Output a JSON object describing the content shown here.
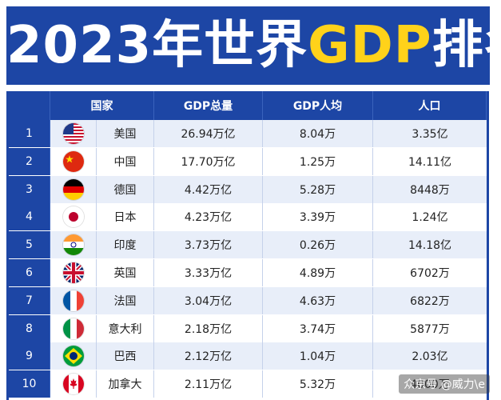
{
  "banner": {
    "title_prefix": "2023年世界",
    "title_highlight": "GDP",
    "title_suffix": "排名"
  },
  "colors": {
    "header_blue": "#1d46a5",
    "highlight_yellow": "#ffd21a",
    "stripe": "#e8eef9"
  },
  "table": {
    "headers": {
      "country": "国家",
      "gdp_total": "GDP总量",
      "gdp_per_capita": "GDP人均",
      "population": "人口"
    },
    "rows": [
      {
        "rank": "1",
        "flag": "usa-flag-icon",
        "country": "美国",
        "gdp_total": "26.94万亿",
        "gdp_per_capita": "8.04万",
        "population": "3.35亿"
      },
      {
        "rank": "2",
        "flag": "china-flag-icon",
        "country": "中国",
        "gdp_total": "17.70万亿",
        "gdp_per_capita": "1.25万",
        "population": "14.11亿"
      },
      {
        "rank": "3",
        "flag": "germany-flag-icon",
        "country": "德国",
        "gdp_total": "4.42万亿",
        "gdp_per_capita": "5.28万",
        "population": "8448万"
      },
      {
        "rank": "4",
        "flag": "japan-flag-icon",
        "country": "日本",
        "gdp_total": "4.23万亿",
        "gdp_per_capita": "3.39万",
        "population": "1.24亿"
      },
      {
        "rank": "5",
        "flag": "india-flag-icon",
        "country": "印度",
        "gdp_total": "3.73万亿",
        "gdp_per_capita": "0.26万",
        "population": "14.18亿"
      },
      {
        "rank": "6",
        "flag": "uk-flag-icon",
        "country": "英国",
        "gdp_total": "3.33万亿",
        "gdp_per_capita": "4.89万",
        "population": "6702万"
      },
      {
        "rank": "7",
        "flag": "france-flag-icon",
        "country": "法国",
        "gdp_total": "3.04万亿",
        "gdp_per_capita": "4.63万",
        "population": "6822万"
      },
      {
        "rank": "8",
        "flag": "italy-flag-icon",
        "country": "意大利",
        "gdp_total": "2.18万亿",
        "gdp_per_capita": "3.74万",
        "population": "5877万"
      },
      {
        "rank": "9",
        "flag": "brazil-flag-icon",
        "country": "巴西",
        "gdp_total": "2.12万亿",
        "gdp_per_capita": "1.04万",
        "population": "2.03亿"
      },
      {
        "rank": "10",
        "flag": "canada-flag-icon",
        "country": "加拿大",
        "gdp_total": "2.11万亿",
        "gdp_per_capita": "5.32万",
        "population": "4000万"
      }
    ]
  },
  "watermark": "众京号 @威力\\e"
}
